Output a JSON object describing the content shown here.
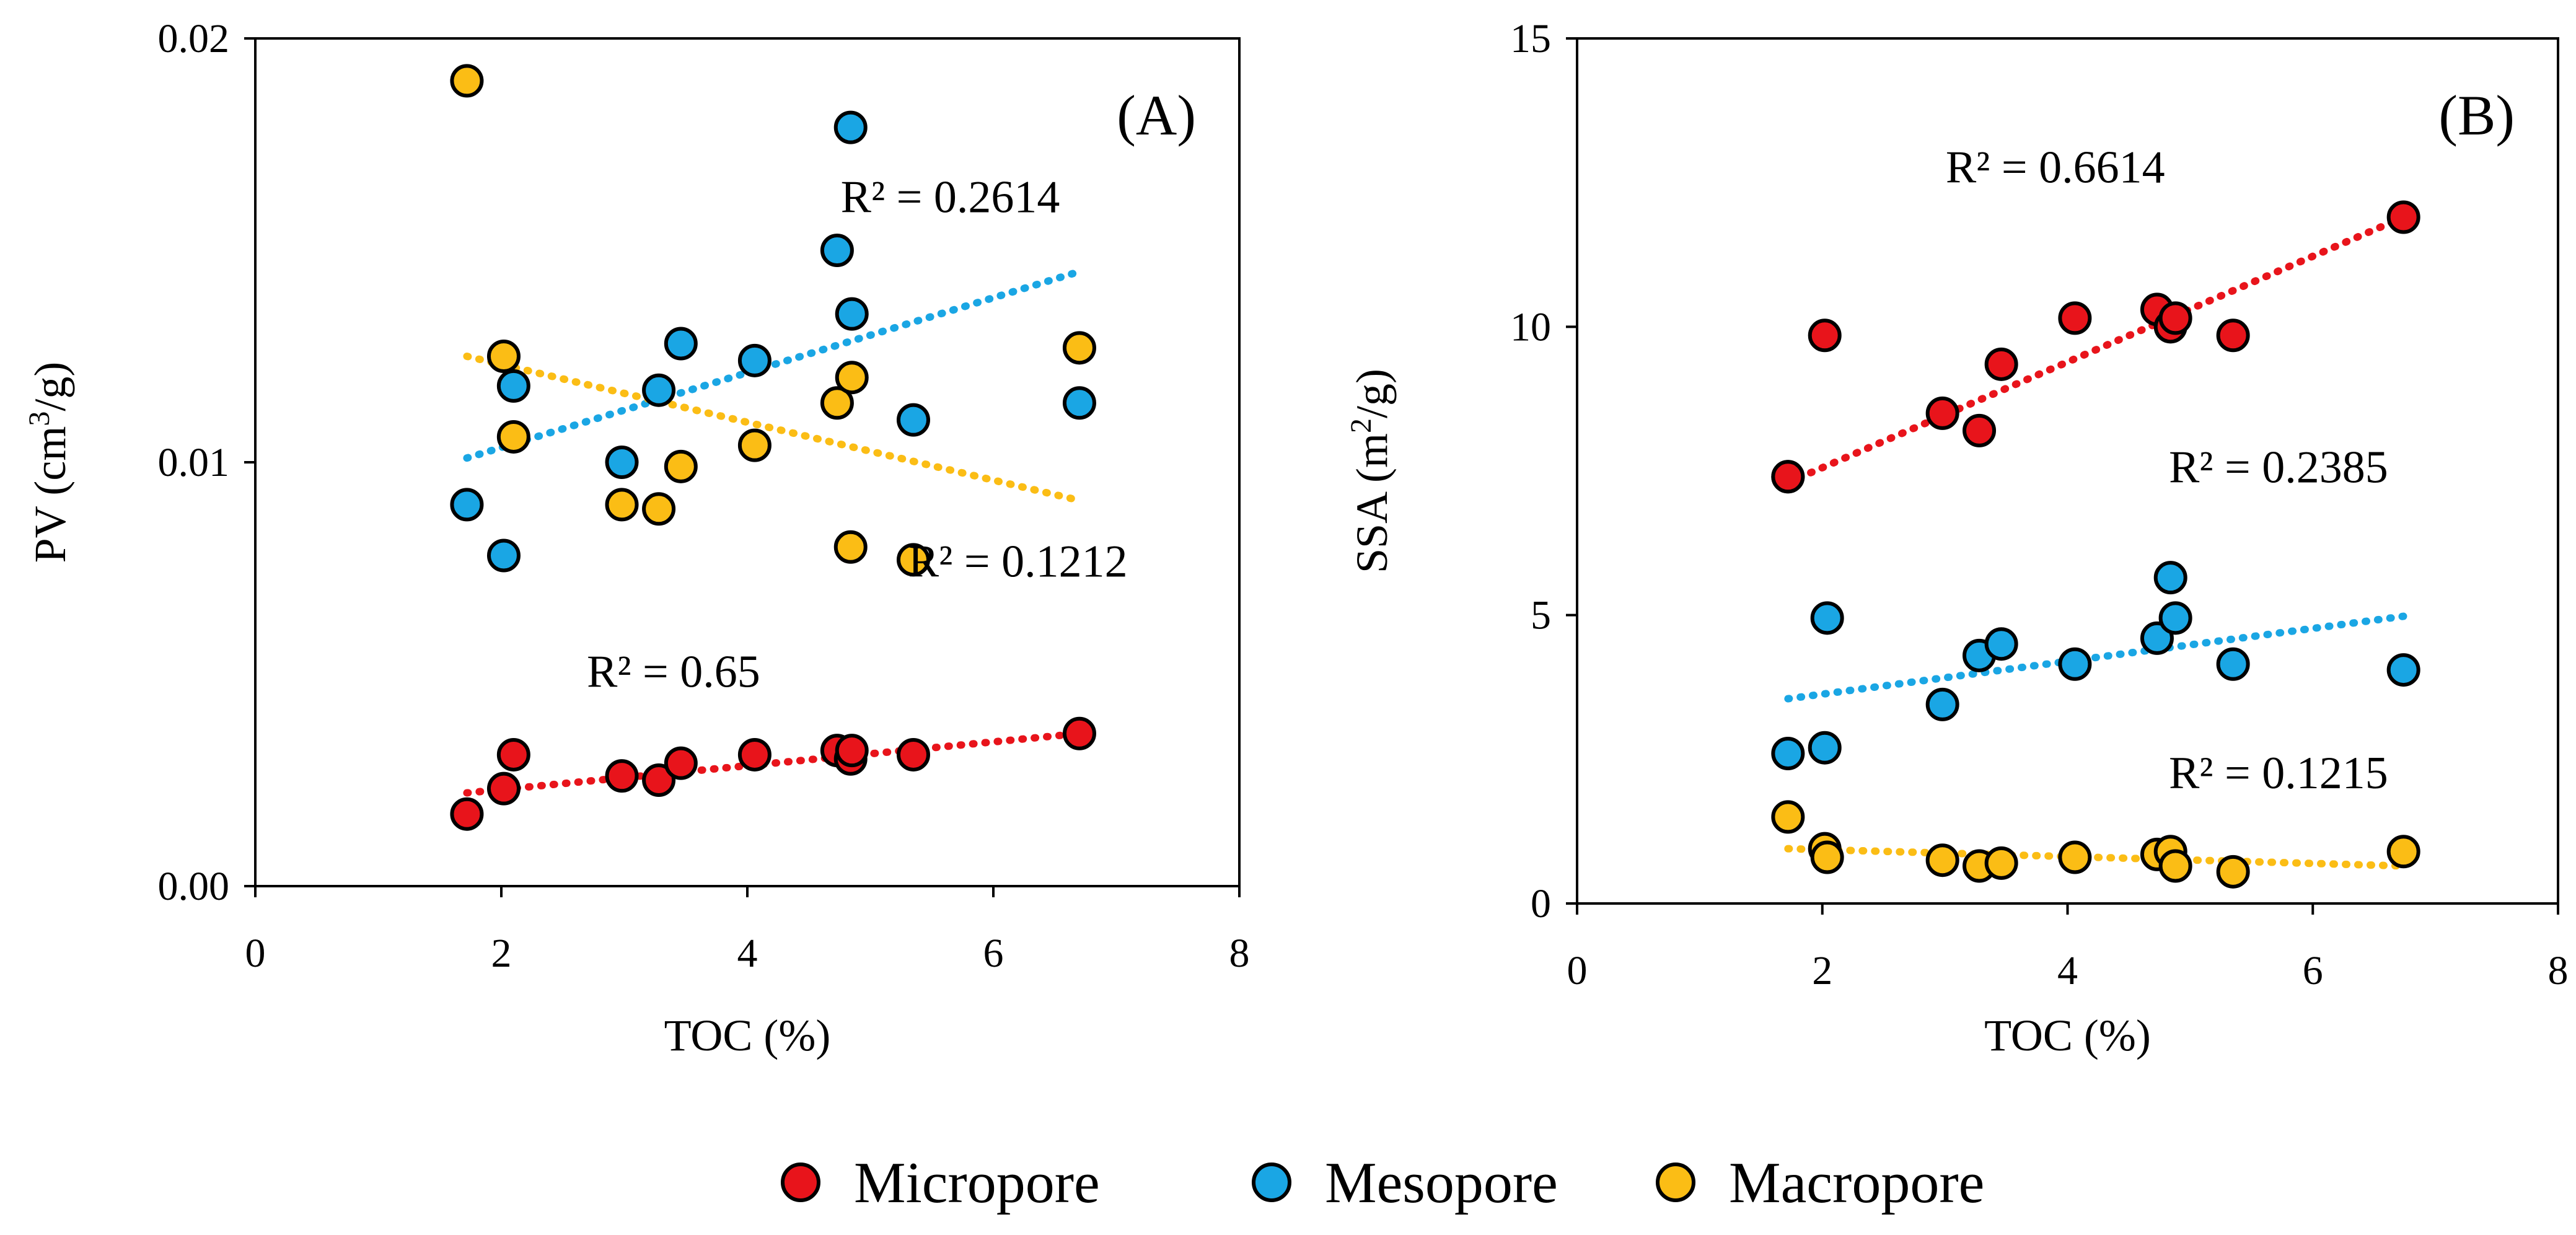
{
  "chart_data": [
    {
      "type": "scatter",
      "panel_label": "(A)",
      "xlabel": "TOC (%)",
      "ylabel_main": "PV (cm",
      "ylabel_sup": "3",
      "ylabel_tail": "/g)",
      "xlim": [
        0,
        8
      ],
      "ylim": [
        0,
        0.02
      ],
      "xticks": [
        0,
        2,
        4,
        6,
        8
      ],
      "xtick_labels": [
        "0",
        "2",
        "4",
        "6",
        "8"
      ],
      "yticks": [
        0,
        0.01,
        0.02
      ],
      "ytick_labels": [
        "0.00",
        "0.01",
        "0.02"
      ],
      "series": [
        {
          "name": "Micropore",
          "color": "#e8141b",
          "points": [
            [
              1.72,
              0.0017
            ],
            [
              2.02,
              0.0023
            ],
            [
              2.1,
              0.0031
            ],
            [
              2.98,
              0.0026
            ],
            [
              3.28,
              0.0025
            ],
            [
              3.46,
              0.0029
            ],
            [
              4.06,
              0.0031
            ],
            [
              4.73,
              0.0032
            ],
            [
              4.84,
              0.003
            ],
            [
              4.85,
              0.0032
            ],
            [
              5.35,
              0.0031
            ],
            [
              6.7,
              0.0036
            ]
          ],
          "trend": [
            [
              1.72,
              0.0022
            ],
            [
              6.7,
              0.0036
            ]
          ],
          "r2": "R² = 0.65",
          "r2_pos": [
            3.4,
            0.0047
          ]
        },
        {
          "name": "Mesopore",
          "color": "#1aa6e4",
          "points": [
            [
              1.72,
              0.009
            ],
            [
              2.02,
              0.0078
            ],
            [
              2.1,
              0.0118
            ],
            [
              2.98,
              0.01
            ],
            [
              3.28,
              0.0117
            ],
            [
              3.46,
              0.0128
            ],
            [
              4.06,
              0.0124
            ],
            [
              4.73,
              0.015
            ],
            [
              4.84,
              0.0179
            ],
            [
              4.85,
              0.0135
            ],
            [
              5.35,
              0.011
            ],
            [
              6.7,
              0.0114
            ]
          ],
          "trend": [
            [
              1.72,
              0.0101
            ],
            [
              6.7,
              0.0145
            ]
          ],
          "r2": "R² = 0.2614",
          "r2_pos": [
            5.65,
            0.0159
          ]
        },
        {
          "name": "Macropore",
          "color": "#fbbd15",
          "points": [
            [
              1.72,
              0.019
            ],
            [
              2.02,
              0.0125
            ],
            [
              2.1,
              0.0106
            ],
            [
              2.98,
              0.009
            ],
            [
              3.28,
              0.0089
            ],
            [
              3.46,
              0.0099
            ],
            [
              4.06,
              0.0104
            ],
            [
              4.73,
              0.0114
            ],
            [
              4.84,
              0.008
            ],
            [
              4.85,
              0.012
            ],
            [
              5.35,
              0.0077
            ],
            [
              6.7,
              0.0127
            ]
          ],
          "trend": [
            [
              1.72,
              0.0125
            ],
            [
              6.7,
              0.0091
            ]
          ],
          "r2": "R² = 0.1212",
          "r2_pos": [
            6.2,
            0.0073
          ]
        }
      ]
    },
    {
      "type": "scatter",
      "panel_label": "(B)",
      "xlabel": "TOC (%)",
      "ylabel_main": "SSA (m",
      "ylabel_sup": "2",
      "ylabel_tail": "/g)",
      "xlim": [
        0,
        8
      ],
      "ylim": [
        0,
        15
      ],
      "xticks": [
        0,
        2,
        4,
        6,
        8
      ],
      "xtick_labels": [
        "0",
        "2",
        "4",
        "6",
        "8"
      ],
      "yticks": [
        0,
        5,
        10,
        15
      ],
      "ytick_labels": [
        "0",
        "5",
        "10",
        "15"
      ],
      "series": [
        {
          "name": "Micropore",
          "color": "#e8141b",
          "points": [
            [
              1.72,
              7.4
            ],
            [
              2.02,
              9.85
            ],
            [
              2.98,
              8.5
            ],
            [
              3.28,
              8.2
            ],
            [
              3.46,
              9.35
            ],
            [
              4.06,
              10.15
            ],
            [
              4.73,
              10.3
            ],
            [
              4.84,
              10.0
            ],
            [
              4.88,
              10.15
            ],
            [
              5.35,
              9.85
            ],
            [
              6.74,
              11.9
            ],
            [
              1.72,
              7.4
            ]
          ],
          "trend": [
            [
              1.72,
              7.3
            ],
            [
              6.74,
              11.9
            ]
          ],
          "r2": "R² = 0.6614",
          "r2_pos": [
            3.9,
            12.5
          ]
        },
        {
          "name": "Mesopore",
          "color": "#1aa6e4",
          "points": [
            [
              1.72,
              2.6
            ],
            [
              2.02,
              2.7
            ],
            [
              2.04,
              4.95
            ],
            [
              2.98,
              3.45
            ],
            [
              3.28,
              4.3
            ],
            [
              3.46,
              4.5
            ],
            [
              4.06,
              4.15
            ],
            [
              4.73,
              4.6
            ],
            [
              4.84,
              5.65
            ],
            [
              4.88,
              4.95
            ],
            [
              5.35,
              4.15
            ],
            [
              6.74,
              4.05
            ]
          ],
          "trend": [
            [
              1.72,
              3.55
            ],
            [
              6.74,
              4.98
            ]
          ],
          "r2": "R² = 0.2385",
          "r2_pos": [
            5.72,
            7.3
          ]
        },
        {
          "name": "Macropore",
          "color": "#fbbd15",
          "points": [
            [
              1.72,
              1.5
            ],
            [
              2.02,
              0.95
            ],
            [
              2.04,
              0.8
            ],
            [
              2.98,
              0.75
            ],
            [
              3.28,
              0.65
            ],
            [
              3.46,
              0.7
            ],
            [
              4.06,
              0.8
            ],
            [
              4.73,
              0.85
            ],
            [
              4.84,
              0.9
            ],
            [
              4.88,
              0.65
            ],
            [
              5.35,
              0.55
            ],
            [
              6.74,
              0.9
            ]
          ],
          "trend": [
            [
              1.72,
              0.95
            ],
            [
              6.74,
              0.65
            ]
          ],
          "r2": "R² = 0.1215",
          "r2_pos": [
            5.72,
            2.0
          ]
        }
      ]
    }
  ],
  "legend": {
    "items": [
      {
        "label": "Micropore",
        "color": "#e8141b"
      },
      {
        "label": "Mesopore",
        "color": "#1aa6e4"
      },
      {
        "label": "Macropore",
        "color": "#fbbd15"
      }
    ]
  }
}
